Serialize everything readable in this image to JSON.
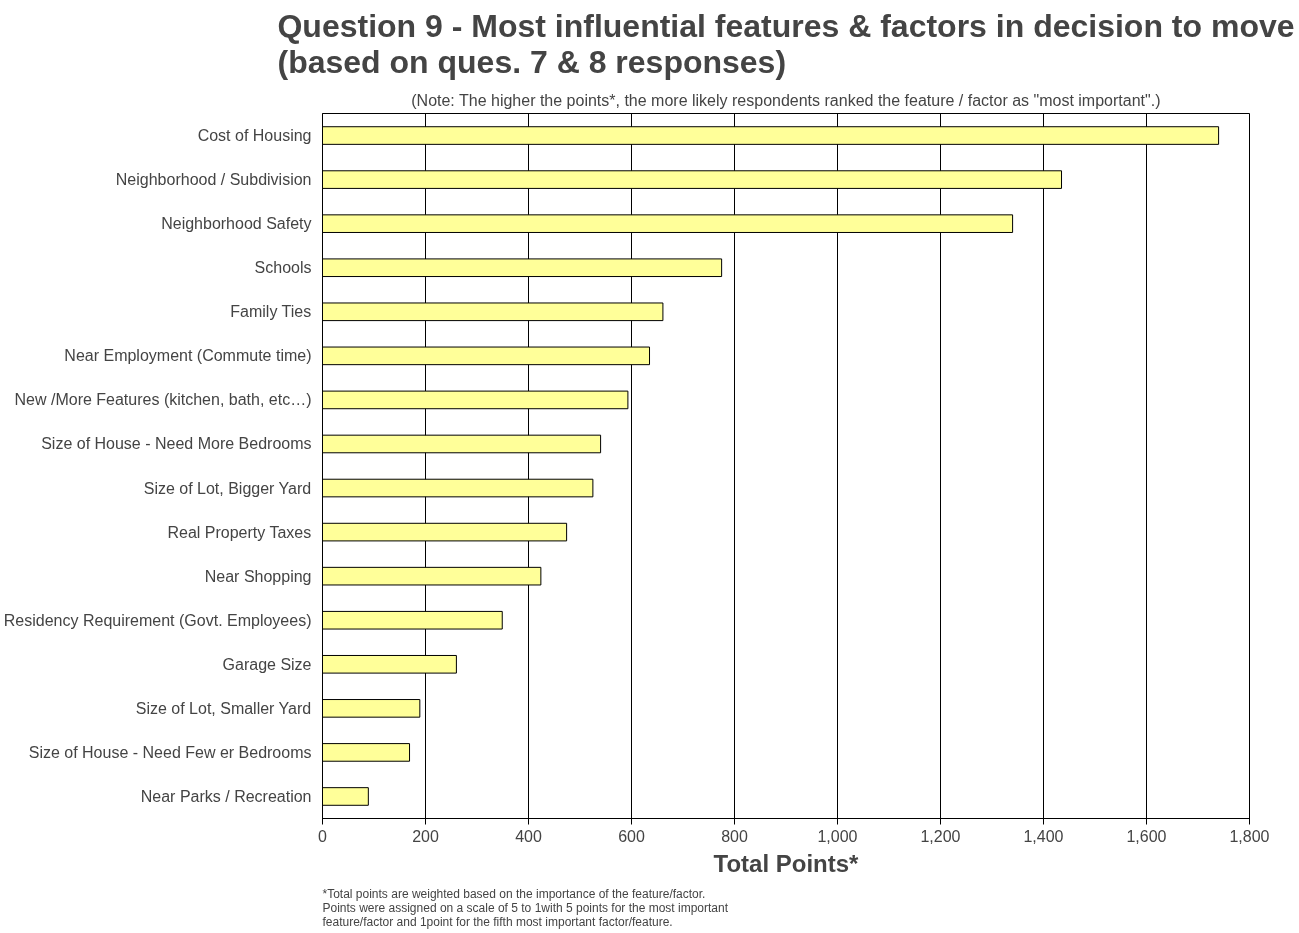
{
  "chart_data": {
    "type": "bar",
    "orientation": "horizontal",
    "title": "Question 9 - Most influential features & factors in decision to move\n(based on ques. 7 & 8 responses)",
    "subtitle": "(Note: The higher the points*, the more likely respondents ranked the feature / factor as \"most important\".)",
    "xlabel": "Total Points*",
    "categories": [
      "Cost of Housing",
      "Neighborhood / Subdivision",
      "Neighborhood Safety",
      "Schools",
      "Family Ties",
      "Near Employment (Commute time)",
      "New /More Features (kitchen, bath, etc…)",
      "Size of House - Need More Bedrooms",
      "Size of Lot, Bigger Yard",
      "Real Property Taxes",
      "Near Shopping",
      "Residency Requirement (Govt. Employees)",
      "Garage Size",
      "Size of Lot, Smaller Yard",
      "Size of House - Need Few er Bedrooms",
      "Near Parks / Recreation"
    ],
    "values": [
      1740,
      1435,
      1340,
      775,
      661,
      635,
      593,
      540,
      525,
      474,
      424,
      349,
      260,
      189,
      169,
      89
    ],
    "color": "#ffff99",
    "xlim": [
      0,
      1800
    ],
    "xticks": [
      0,
      200,
      400,
      600,
      800,
      {
        "value": 1000,
        "label": "1,000"
      },
      {
        "value": 1200,
        "label": "1,200"
      },
      {
        "value": 1400,
        "label": "1,400"
      },
      {
        "value": 1600,
        "label": "1,600"
      },
      {
        "value": 1800,
        "label": "1,800"
      }
    ],
    "grid": "x",
    "annotations": [
      "*Total points are weighted based on the importance of the feature/factor.\nPoints were assigned on a scale of 5 to 1with 5 points for the most important\nfeature/factor and 1point for the fifth most important factor/feature."
    ]
  }
}
